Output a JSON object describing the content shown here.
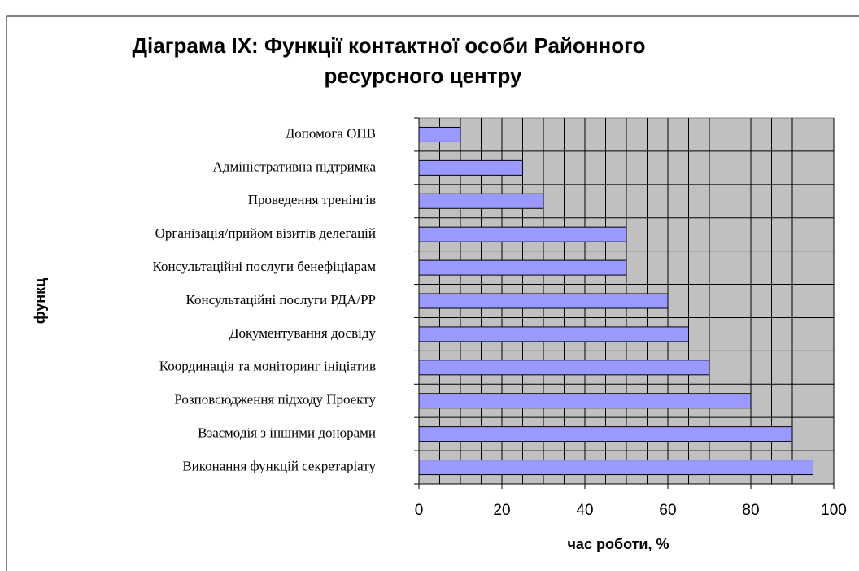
{
  "chart_data": {
    "type": "hbar",
    "title": [
      "Діаграма IX: Функції контактної особи Районного",
      "ресурсного центру"
    ],
    "xlabel": "час роботи, %",
    "ylabel": "функц",
    "categories": [
      "Допомога ОПВ",
      "Адміністративна підтримка",
      "Проведення тренінгів",
      "Організація/прийом візитів делегацій",
      "Консультаційні послуги бенефіціарам",
      "Консультаційні послуги РДА/РР",
      "Документування досвіду",
      "Координація та моніторинг ініціатив",
      "Розповсюдження підходу Проекту",
      "Взаємодія з іншими донорами",
      "Виконання функцій секретаріату"
    ],
    "values": [
      10,
      25,
      30,
      50,
      50,
      60,
      65,
      70,
      80,
      90,
      95
    ],
    "color": "#9999ff",
    "xlim": [
      0,
      100
    ],
    "xticks": [
      0,
      20,
      40,
      60,
      80,
      100
    ],
    "xminor_ticks": [
      5,
      10,
      15,
      25,
      30,
      35,
      45,
      50,
      55,
      65,
      70,
      75,
      85,
      90,
      95
    ],
    "grid": true
  }
}
